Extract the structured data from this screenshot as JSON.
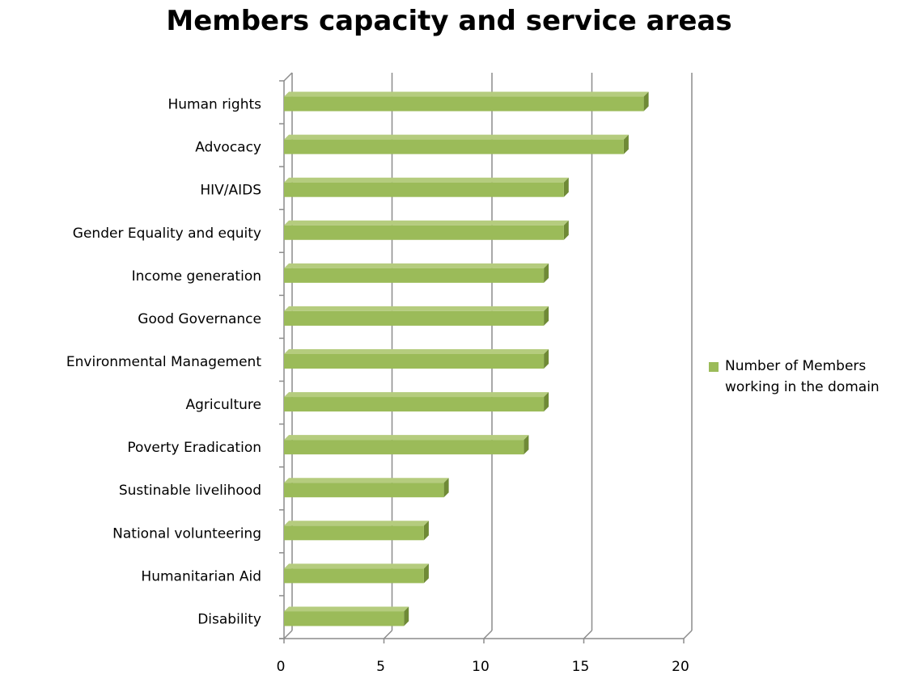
{
  "chart_data": {
    "type": "bar",
    "orientation": "horizontal",
    "title": "Members capacity and service areas",
    "xlabel": "",
    "ylabel": "",
    "xlim": [
      0,
      20
    ],
    "x_ticks": [
      0,
      5,
      10,
      15,
      20
    ],
    "grid": true,
    "legend_position": "right",
    "categories": [
      "Human rights",
      "Advocacy",
      "HIV/AIDS",
      "Gender Equality and equity",
      "Income generation",
      "Good Governance",
      "Environmental Management",
      "Agriculture",
      "Poverty Eradication",
      "Sustinable livelihood",
      "National volunteering",
      "Humanitarian Aid",
      "Disability"
    ],
    "series": [
      {
        "name": "Number of Members working in the domain",
        "color": "#9bbb59",
        "values": [
          18,
          17,
          14,
          14,
          13,
          13,
          13,
          13,
          12,
          8,
          7,
          7,
          6
        ]
      }
    ]
  }
}
